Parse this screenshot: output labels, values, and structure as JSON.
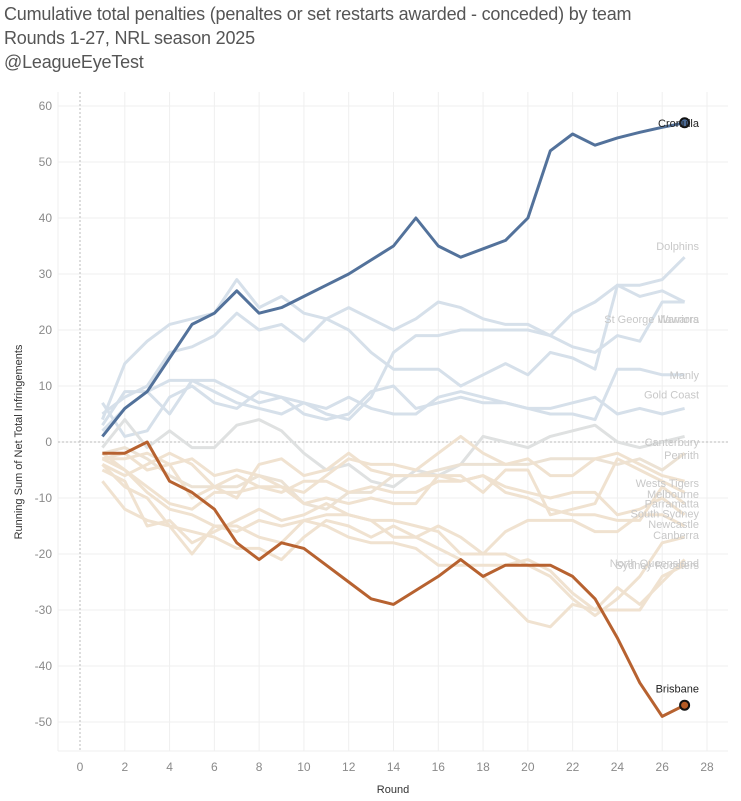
{
  "header": {
    "title": "Cumulative total penalties (penaltes or set restarts awarded - conceded) by team",
    "subtitle": "Rounds 1-27, NRL season 2025",
    "credit": "@LeagueEyeTest"
  },
  "chart_data": {
    "type": "line",
    "title": "Cumulative total penalties (penaltes or set restarts awarded - conceded) by team",
    "subtitle": "Rounds 1-27, NRL season 2025",
    "xlabel": "Round",
    "ylabel": "Running Sum of Net Total Infringements",
    "xlim": [
      -1,
      29
    ],
    "ylim": [
      -58,
      63
    ],
    "xticks": [
      0,
      2,
      4,
      6,
      8,
      10,
      12,
      14,
      16,
      18,
      20,
      22,
      24,
      26,
      28
    ],
    "yticks": [
      60,
      50,
      40,
      30,
      20,
      10,
      0,
      -10,
      -20,
      -30,
      -40,
      -50
    ],
    "grid": true,
    "legend": "none (direct end labels on right)",
    "x": [
      1,
      2,
      3,
      4,
      5,
      6,
      7,
      8,
      9,
      10,
      11,
      12,
      13,
      14,
      15,
      16,
      17,
      18,
      19,
      20,
      21,
      22,
      23,
      24,
      25,
      26,
      27
    ],
    "highlight_colors": {
      "Cronulla": "#4a6a96",
      "Brisbane": "#b35a25"
    },
    "series": [
      {
        "name": "Cronulla",
        "highlight": true,
        "values": [
          1,
          6,
          9,
          15,
          21,
          23,
          27,
          23,
          24,
          26,
          28,
          30,
          32.5,
          35,
          40,
          35,
          33,
          34.5,
          36,
          40,
          52,
          55,
          53,
          54.3,
          55.3,
          56.2,
          57
        ]
      },
      {
        "name": "Brisbane",
        "highlight": true,
        "values": [
          -2,
          -2,
          0,
          -7,
          -9,
          -12,
          -18,
          -21,
          -18,
          -19,
          -22,
          -25,
          -28,
          -29,
          -26.5,
          -24,
          -21,
          -24,
          -22,
          -22,
          -22,
          -24,
          -28,
          -35,
          -43,
          -49,
          -47
        ]
      },
      {
        "name": "Dolphins",
        "highlight": false,
        "values": [
          4,
          14,
          18,
          21,
          22,
          23,
          29,
          24,
          26,
          23,
          22,
          24,
          22,
          20,
          22,
          25,
          24,
          22,
          21,
          21,
          19,
          23,
          25,
          28,
          28,
          29,
          33
        ]
      },
      {
        "name": "St George",
        "highlight": false,
        "values": [
          3,
          9,
          9,
          5,
          11,
          11,
          9,
          7,
          8,
          7,
          5,
          4,
          8,
          16,
          19,
          19,
          20,
          20,
          20,
          20,
          19,
          17,
          16,
          19,
          18,
          25,
          25
        ]
      },
      {
        "name": "Warriors",
        "highlight": false,
        "values": [
          5,
          8,
          10,
          16,
          17,
          19,
          23,
          20,
          21,
          18,
          22,
          20,
          16,
          13,
          13,
          13,
          10,
          12,
          14,
          12,
          16,
          15,
          13,
          28,
          26,
          27,
          25
        ]
      },
      {
        "name": "Manly",
        "highlight": false,
        "values": [
          2,
          6,
          9,
          11,
          11,
          9,
          7,
          6,
          5,
          7,
          6,
          8,
          6,
          5,
          5,
          8,
          9,
          8,
          7,
          6,
          5,
          5,
          4,
          13,
          13,
          12,
          12
        ]
      },
      {
        "name": "Gold Coast",
        "highlight": false,
        "values": [
          7,
          1,
          2,
          8,
          10,
          7,
          6,
          9,
          8,
          5,
          4,
          5,
          9,
          10,
          6,
          7,
          8,
          7,
          7,
          6,
          6,
          7,
          8,
          5,
          6,
          5,
          6
        ]
      },
      {
        "name": "Canterbury",
        "highlight": false,
        "values": [
          -1,
          4,
          -1,
          2,
          -1,
          -1,
          3,
          4,
          2,
          -2,
          -5,
          -4,
          -7,
          -8,
          -5,
          -6,
          -4,
          1,
          0,
          -1,
          1,
          2,
          3,
          0,
          -1,
          0,
          1
        ]
      },
      {
        "name": "Penrith",
        "highlight": false,
        "values": [
          -2,
          -1,
          -3,
          -6,
          -8,
          -8,
          -8,
          -6,
          -7,
          -11,
          -12,
          -9,
          -9,
          -6,
          -6,
          -5,
          -4,
          -4,
          -4,
          -4,
          -3,
          -3,
          -3,
          -4,
          -3,
          -5,
          -2
        ]
      },
      {
        "name": "Wests Tigers",
        "highlight": false,
        "values": [
          -3,
          -2,
          -5,
          -4,
          -3,
          -6,
          -5,
          -6,
          -8,
          -9,
          -6,
          -3,
          -4,
          -4,
          -5,
          -2,
          1,
          -2,
          -4,
          -3,
          -6,
          -6,
          -3,
          -2,
          -4,
          -6,
          -7
        ]
      },
      {
        "name": "Melbourne",
        "highlight": false,
        "values": [
          -4,
          -6,
          -4,
          -2,
          -4,
          -8,
          -10,
          -4,
          -3,
          -6,
          -5,
          -2,
          -5,
          -6,
          -6,
          -6,
          -6,
          -9,
          -5,
          -5,
          -13,
          -12,
          -11,
          -3,
          -5,
          -7,
          -9
        ]
      },
      {
        "name": "Parramatta",
        "highlight": false,
        "values": [
          -3,
          -3,
          -2,
          -4,
          -10,
          -8,
          -6,
          -8,
          -9,
          -7,
          -7,
          -9,
          -8,
          -9,
          -9,
          -7,
          -7,
          -6,
          -9,
          -10,
          -12,
          -13,
          -13,
          -14,
          -14,
          -8,
          -11
        ]
      },
      {
        "name": "South Sydney",
        "highlight": false,
        "values": [
          -3,
          -5,
          -8,
          -11,
          -12,
          -9,
          -9,
          -8,
          -8,
          -11,
          -10,
          -11,
          -10,
          -11,
          -11,
          -6,
          -7,
          -6,
          -8,
          -9,
          -10,
          -9,
          -9,
          -13,
          -12,
          -10,
          -13
        ]
      },
      {
        "name": "Newcastle",
        "highlight": false,
        "values": [
          -5,
          -7,
          -15,
          -14,
          -18,
          -16,
          -14,
          -12,
          -14,
          -13,
          -11,
          -13,
          -14,
          -14,
          -15,
          -16,
          -20,
          -20,
          -16,
          -14,
          -14,
          -14,
          -16,
          -16,
          -13,
          -13,
          -15
        ]
      },
      {
        "name": "Canberra",
        "highlight": false,
        "values": [
          -7,
          -12,
          -14,
          -15,
          -20,
          -15,
          -16,
          -14,
          -15,
          -14,
          -13,
          -13,
          -14,
          -17,
          -17,
          -15,
          -17,
          -20,
          -20,
          -22,
          -24,
          -28,
          -31,
          -28,
          -24,
          -18,
          -17
        ]
      },
      {
        "name": "North Queensland",
        "highlight": false,
        "values": [
          -4,
          -8,
          -10,
          -15,
          -16,
          -17,
          -19,
          -19,
          -21,
          -17,
          -14,
          -15,
          -17,
          -15,
          -17,
          -19,
          -21,
          -24,
          -28,
          -32,
          -33,
          -29,
          -30,
          -26,
          -29,
          -25,
          -21
        ]
      },
      {
        "name": "Sydney Roosters",
        "highlight": false,
        "values": [
          -2,
          -5,
          -9,
          -12,
          -13,
          -15,
          -15,
          -17,
          -18,
          -14,
          -15,
          -17,
          -18,
          -18,
          -19,
          -22,
          -22,
          -22,
          -22,
          -21,
          -23,
          -27,
          -30,
          -30,
          -30,
          -24,
          -22
        ]
      }
    ],
    "end_labels": [
      {
        "name": "Cronulla",
        "value": 57
      },
      {
        "name": "Dolphins",
        "value": 35
      },
      {
        "name": "St George Illawarra",
        "value": 22
      },
      {
        "name": "Warriors",
        "value": 22
      },
      {
        "name": "Manly",
        "value": 12
      },
      {
        "name": "Gold Coast",
        "value": 8.5
      },
      {
        "name": "Canterbury",
        "value": 0
      },
      {
        "name": "Penrith",
        "value": -2.3
      },
      {
        "name": "Wests Tigers",
        "value": -7.3
      },
      {
        "name": "Melbourne",
        "value": -9.3
      },
      {
        "name": "Parramatta",
        "value": -11
      },
      {
        "name": "South Sydney",
        "value": -12.8
      },
      {
        "name": "Newcastle",
        "value": -14.6
      },
      {
        "name": "Canberra",
        "value": -16.6
      },
      {
        "name": "North Queensland",
        "value": -21.6
      },
      {
        "name": "Sydney Roosters",
        "value": -22
      },
      {
        "name": "Brisbane",
        "value": -44
      }
    ]
  }
}
